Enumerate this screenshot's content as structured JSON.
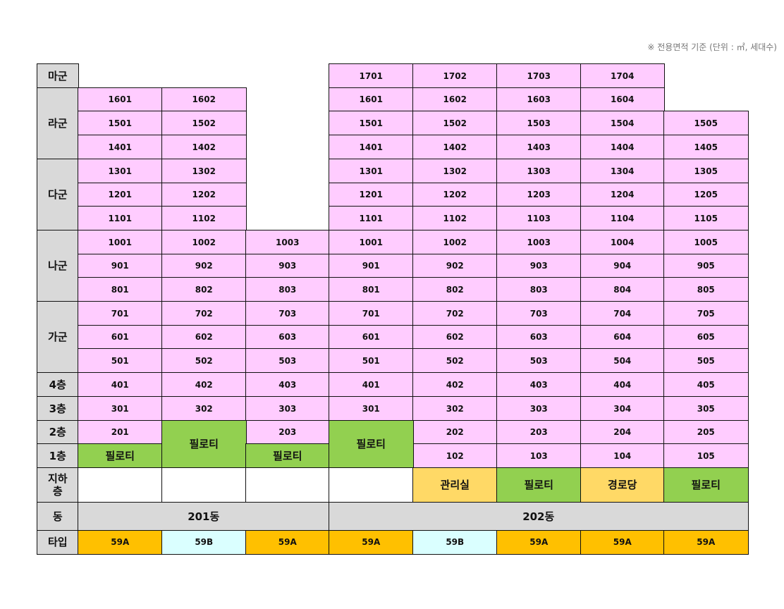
{
  "note": "※ 전용면적 기준 (단위 : ㎡, 세대수)",
  "colors": {
    "unit": "#FFCCFF",
    "label": "#D9D9D9",
    "piloti": "#92D050",
    "amenity": "#FFD966",
    "empty": "#FFFFFF",
    "type_a": "#FFC000",
    "type_b": "#DAFFFF"
  },
  "row_labels": {
    "ma": "마군",
    "ra": "라군",
    "da": "다군",
    "na": "나군",
    "ga": "가군",
    "f4": "4층",
    "f3": "3층",
    "f2": "2층",
    "f1": "1층",
    "basement": "지하\n층",
    "dong": "동",
    "type": "타입"
  },
  "buildings": {
    "b201": "201동",
    "b202": "202동"
  },
  "special": {
    "piloti": "필로티",
    "office": "관리실",
    "senior": "경로당"
  },
  "types": {
    "c1": "59A",
    "c2": "59B",
    "c3": "59A",
    "c4": "59A",
    "c5": "59B",
    "c6": "59A",
    "c7": "59A",
    "c8": "59A"
  },
  "units": {
    "c1": [
      "",
      "1601",
      "1501",
      "1401",
      "1301",
      "1201",
      "1101",
      "1001",
      "901",
      "801",
      "701",
      "601",
      "501",
      "401",
      "301",
      "201",
      ""
    ],
    "c2": [
      "",
      "1602",
      "1502",
      "1402",
      "1302",
      "1202",
      "1102",
      "1002",
      "902",
      "802",
      "702",
      "602",
      "502",
      "402",
      "302",
      "",
      ""
    ],
    "c3": [
      "",
      "",
      "",
      "",
      "",
      "",
      "",
      "1003",
      "903",
      "803",
      "703",
      "603",
      "503",
      "403",
      "303",
      "203",
      ""
    ],
    "c4": [
      "1701",
      "1601",
      "1501",
      "1401",
      "1301",
      "1201",
      "1101",
      "1001",
      "901",
      "801",
      "701",
      "601",
      "501",
      "401",
      "301",
      "",
      ""
    ],
    "c5": [
      "1702",
      "1602",
      "1502",
      "1402",
      "1302",
      "1202",
      "1102",
      "1002",
      "902",
      "802",
      "702",
      "602",
      "502",
      "402",
      "302",
      "202",
      "102"
    ],
    "c6": [
      "1703",
      "1603",
      "1503",
      "1403",
      "1303",
      "1203",
      "1103",
      "1003",
      "903",
      "803",
      "703",
      "603",
      "503",
      "403",
      "303",
      "203",
      "103"
    ],
    "c7": [
      "1704",
      "1604",
      "1504",
      "1404",
      "1304",
      "1204",
      "1104",
      "1004",
      "904",
      "804",
      "704",
      "604",
      "504",
      "404",
      "304",
      "204",
      "104"
    ],
    "c8": [
      "",
      "",
      "1505",
      "1405",
      "1305",
      "1205",
      "1105",
      "1005",
      "905",
      "805",
      "705",
      "605",
      "505",
      "405",
      "305",
      "205",
      "105"
    ]
  }
}
